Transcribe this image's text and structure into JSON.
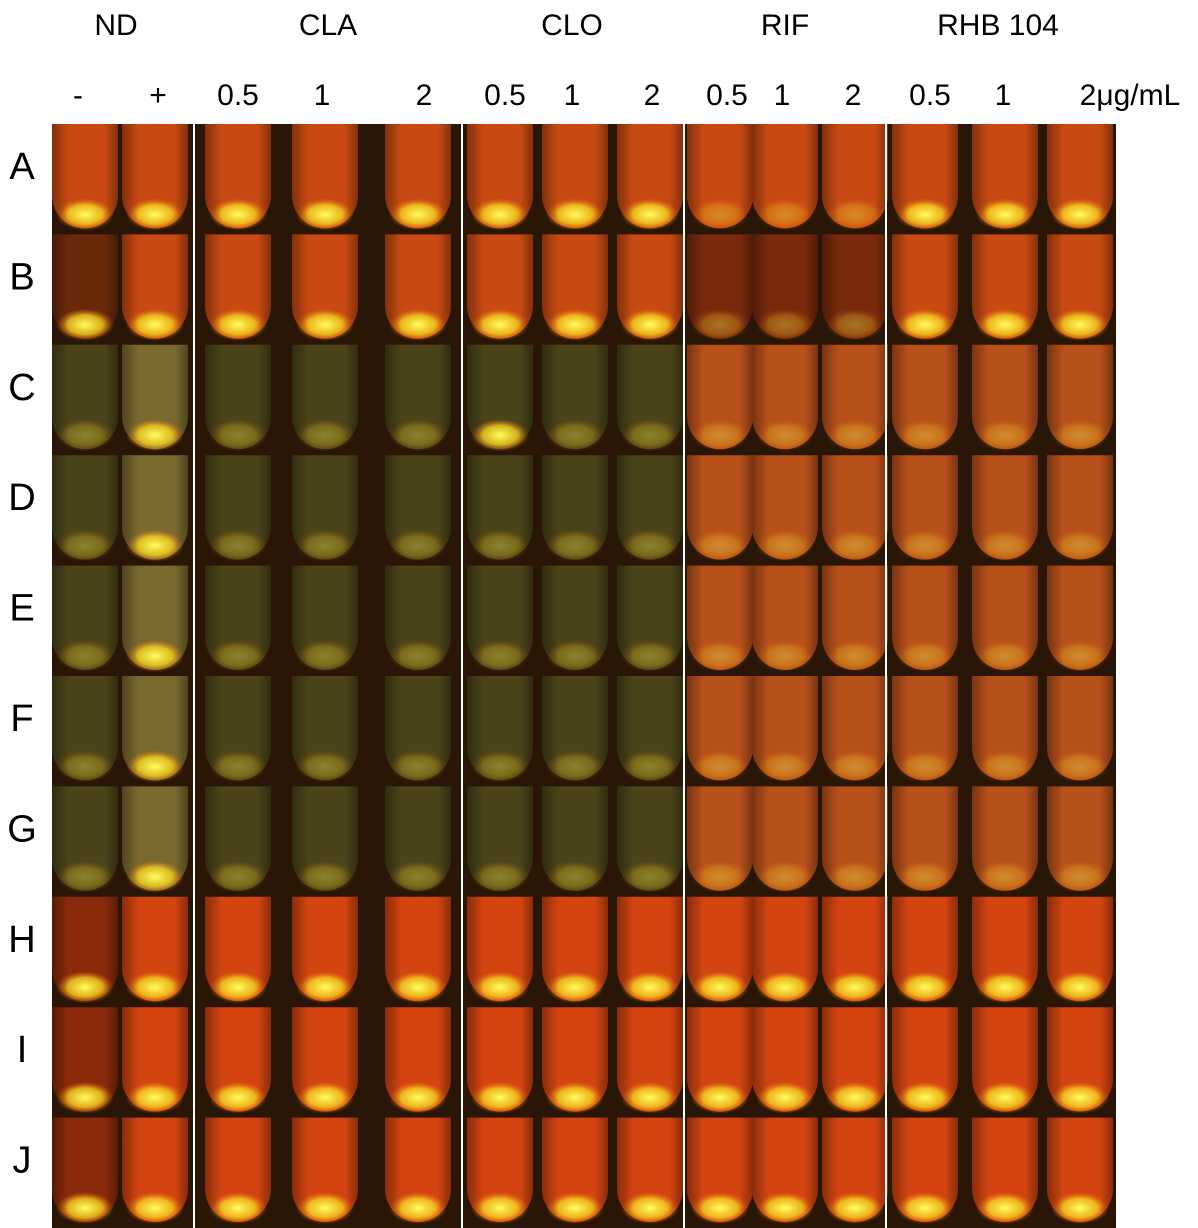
{
  "header": {
    "groups": [
      "ND",
      "CLA",
      "CLO",
      "RIF",
      "RHB 104"
    ],
    "columns": [
      "-",
      "+",
      "0.5",
      "1",
      "2",
      "0.5",
      "1",
      "2",
      "0.5",
      "1",
      "2",
      "0.5",
      "1",
      "2μg/mL"
    ]
  },
  "rows": [
    "A",
    "B",
    "C",
    "D",
    "E",
    "F",
    "G",
    "H",
    "I",
    "J"
  ]
}
